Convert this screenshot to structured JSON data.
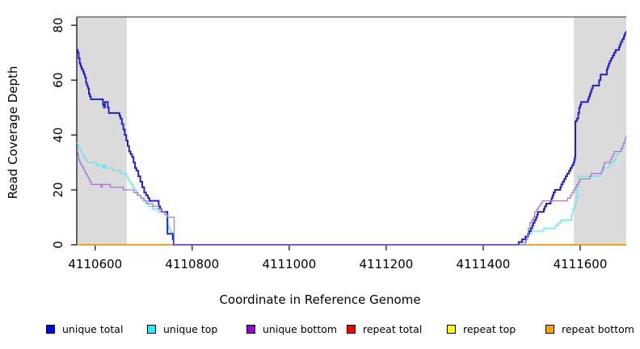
{
  "chart_data": {
    "type": "line",
    "subtype": "step-after-coverage-plot",
    "title": "",
    "xlabel": "Coordinate in Reference Genome",
    "ylabel": "Read Coverage Depth",
    "xlim": [
      4110562,
      4111695
    ],
    "ylim": [
      0,
      83
    ],
    "x_ticks": [
      4110600,
      4110800,
      4111000,
      4111200,
      4111400,
      4111600
    ],
    "y_ticks": [
      0,
      20,
      40,
      60,
      80
    ],
    "grid": "off",
    "background": "#FFFFFF",
    "shaded_regions": [
      {
        "x0": 4110562,
        "x1": 4110665,
        "color": "#DBDBDB"
      },
      {
        "x0": 4111587,
        "x1": 4111695,
        "color": "#DBDBDB"
      }
    ],
    "legend": [
      {
        "label": "unique total",
        "color": "#0000EE"
      },
      {
        "label": "unique top",
        "color": "#00FFFF"
      },
      {
        "label": "unique bottom",
        "color": "#9400D3"
      },
      {
        "label": "repeat total",
        "color": "#FF0000"
      },
      {
        "label": "repeat top",
        "color": "#FFFF00"
      },
      {
        "label": "repeat bottom",
        "color": "#FFA500"
      }
    ],
    "legend_position": "bottom",
    "draw_order": [
      "repeat total",
      "repeat top",
      "repeat bottom",
      "unique top",
      "unique total",
      "unique bottom"
    ],
    "series": [
      {
        "name": "unique total",
        "color": "#2222CC",
        "width": 2,
        "points": [
          [
            4110562,
            71
          ],
          [
            4110564,
            70
          ],
          [
            4110566,
            68
          ],
          [
            4110568,
            66
          ],
          [
            4110570,
            65
          ],
          [
            4110572,
            64
          ],
          [
            4110575,
            63
          ],
          [
            4110577,
            62
          ],
          [
            4110579,
            61
          ],
          [
            4110581,
            59
          ],
          [
            4110583,
            58
          ],
          [
            4110585,
            57
          ],
          [
            4110587,
            55
          ],
          [
            4110589,
            54
          ],
          [
            4110591,
            53
          ],
          [
            4110614,
            53
          ],
          [
            4110616,
            51
          ],
          [
            4110618,
            50
          ],
          [
            4110620,
            52
          ],
          [
            4110624,
            52
          ],
          [
            4110626,
            50
          ],
          [
            4110628,
            48
          ],
          [
            4110648,
            48
          ],
          [
            4110650,
            47
          ],
          [
            4110652,
            46
          ],
          [
            4110655,
            44
          ],
          [
            4110658,
            42
          ],
          [
            4110661,
            40
          ],
          [
            4110664,
            38
          ],
          [
            4110667,
            36
          ],
          [
            4110670,
            34
          ],
          [
            4110673,
            33
          ],
          [
            4110676,
            32
          ],
          [
            4110679,
            30
          ],
          [
            4110682,
            28
          ],
          [
            4110685,
            27
          ],
          [
            4110689,
            25
          ],
          [
            4110693,
            23
          ],
          [
            4110697,
            21
          ],
          [
            4110701,
            19
          ],
          [
            4110705,
            18
          ],
          [
            4110709,
            17
          ],
          [
            4110712,
            16
          ],
          [
            4110728,
            16
          ],
          [
            4110731,
            14
          ],
          [
            4110734,
            13
          ],
          [
            4110737,
            12
          ],
          [
            4110748,
            12
          ],
          [
            4110749,
            4
          ],
          [
            4110758,
            4
          ],
          [
            4110760,
            2
          ],
          [
            4110762,
            0
          ],
          [
            4111473,
            1
          ],
          [
            4111480,
            2
          ],
          [
            4111487,
            3
          ],
          [
            4111492,
            4
          ],
          [
            4111495,
            5
          ],
          [
            4111498,
            6
          ],
          [
            4111501,
            7
          ],
          [
            4111503,
            8
          ],
          [
            4111506,
            9
          ],
          [
            4111509,
            10
          ],
          [
            4111511,
            11
          ],
          [
            4111513,
            12
          ],
          [
            4111522,
            12
          ],
          [
            4111525,
            13
          ],
          [
            4111527,
            14
          ],
          [
            4111530,
            15
          ],
          [
            4111537,
            15
          ],
          [
            4111539,
            16
          ],
          [
            4111541,
            17
          ],
          [
            4111543,
            18
          ],
          [
            4111545,
            19
          ],
          [
            4111548,
            20
          ],
          [
            4111557,
            20
          ],
          [
            4111559,
            21
          ],
          [
            4111561,
            22
          ],
          [
            4111564,
            23
          ],
          [
            4111567,
            24
          ],
          [
            4111570,
            25
          ],
          [
            4111573,
            26
          ],
          [
            4111577,
            27
          ],
          [
            4111580,
            28
          ],
          [
            4111583,
            29
          ],
          [
            4111586,
            30
          ],
          [
            4111588,
            31
          ],
          [
            4111589,
            32
          ],
          [
            4111590,
            45
          ],
          [
            4111593,
            46
          ],
          [
            4111596,
            48
          ],
          [
            4111598,
            50
          ],
          [
            4111600,
            51
          ],
          [
            4111602,
            52
          ],
          [
            4111614,
            52
          ],
          [
            4111616,
            53
          ],
          [
            4111618,
            54
          ],
          [
            4111620,
            55
          ],
          [
            4111622,
            56
          ],
          [
            4111624,
            57
          ],
          [
            4111626,
            58
          ],
          [
            4111636,
            58
          ],
          [
            4111639,
            60
          ],
          [
            4111642,
            62
          ],
          [
            4111653,
            62
          ],
          [
            4111655,
            64
          ],
          [
            4111657,
            65
          ],
          [
            4111659,
            66
          ],
          [
            4111661,
            67
          ],
          [
            4111664,
            68
          ],
          [
            4111667,
            69
          ],
          [
            4111670,
            70
          ],
          [
            4111673,
            71
          ],
          [
            4111680,
            72
          ],
          [
            4111682,
            73
          ],
          [
            4111684,
            74
          ],
          [
            4111687,
            75
          ],
          [
            4111690,
            76
          ],
          [
            4111692,
            77
          ],
          [
            4111695,
            78
          ]
        ]
      },
      {
        "name": "unique top",
        "color": "#5FE8EE",
        "width": 1.3,
        "points": [
          [
            4110562,
            37
          ],
          [
            4110564,
            36
          ],
          [
            4110567,
            35
          ],
          [
            4110570,
            34
          ],
          [
            4110573,
            33
          ],
          [
            4110576,
            32
          ],
          [
            4110579,
            31
          ],
          [
            4110583,
            30
          ],
          [
            4110600,
            30
          ],
          [
            4110602,
            29
          ],
          [
            4110614,
            29
          ],
          [
            4110616,
            28
          ],
          [
            4110618,
            29
          ],
          [
            4110621,
            28
          ],
          [
            4110633,
            28
          ],
          [
            4110636,
            27
          ],
          [
            4110650,
            27
          ],
          [
            4110653,
            26
          ],
          [
            4110661,
            26
          ],
          [
            4110664,
            25
          ],
          [
            4110667,
            24
          ],
          [
            4110670,
            23
          ],
          [
            4110674,
            22
          ],
          [
            4110677,
            21
          ],
          [
            4110681,
            20
          ],
          [
            4110685,
            19
          ],
          [
            4110689,
            18
          ],
          [
            4110694,
            17
          ],
          [
            4110699,
            16
          ],
          [
            4110704,
            15
          ],
          [
            4110711,
            14
          ],
          [
            4110718,
            13
          ],
          [
            4110730,
            12
          ],
          [
            4110745,
            12
          ],
          [
            4110748,
            9
          ],
          [
            4110750,
            7
          ],
          [
            4110752,
            6
          ],
          [
            4110754,
            5
          ],
          [
            4110758,
            4
          ],
          [
            4110762,
            0
          ],
          [
            4111483,
            1
          ],
          [
            4111486,
            2
          ],
          [
            4111490,
            3
          ],
          [
            4111494,
            4
          ],
          [
            4111500,
            5
          ],
          [
            4111522,
            5
          ],
          [
            4111525,
            6
          ],
          [
            4111549,
            7
          ],
          [
            4111554,
            8
          ],
          [
            4111560,
            9
          ],
          [
            4111578,
            9
          ],
          [
            4111582,
            11
          ],
          [
            4111585,
            13
          ],
          [
            4111588,
            14
          ],
          [
            4111590,
            15
          ],
          [
            4111592,
            17
          ],
          [
            4111594,
            22
          ],
          [
            4111596,
            25
          ],
          [
            4111638,
            25
          ],
          [
            4111642,
            26
          ],
          [
            4111646,
            27
          ],
          [
            4111649,
            28
          ],
          [
            4111656,
            28
          ],
          [
            4111660,
            29
          ],
          [
            4111663,
            30
          ],
          [
            4111670,
            31
          ],
          [
            4111674,
            33
          ],
          [
            4111679,
            34
          ],
          [
            4111686,
            35
          ],
          [
            4111689,
            36
          ],
          [
            4111692,
            37
          ]
        ]
      },
      {
        "name": "unique bottom",
        "color": "#A87BDB",
        "width": 1.3,
        "points": [
          [
            4110562,
            34
          ],
          [
            4110564,
            33
          ],
          [
            4110566,
            31
          ],
          [
            4110568,
            30
          ],
          [
            4110571,
            29
          ],
          [
            4110574,
            28
          ],
          [
            4110577,
            27
          ],
          [
            4110580,
            26
          ],
          [
            4110583,
            25
          ],
          [
            4110586,
            24
          ],
          [
            4110589,
            23
          ],
          [
            4110592,
            22
          ],
          [
            4110610,
            22
          ],
          [
            4110612,
            21
          ],
          [
            4110614,
            22
          ],
          [
            4110628,
            22
          ],
          [
            4110631,
            21
          ],
          [
            4110655,
            21
          ],
          [
            4110658,
            20
          ],
          [
            4110676,
            20
          ],
          [
            4110680,
            19
          ],
          [
            4110687,
            18
          ],
          [
            4110694,
            17
          ],
          [
            4110701,
            16
          ],
          [
            4110707,
            15
          ],
          [
            4110716,
            15
          ],
          [
            4110719,
            14
          ],
          [
            4110727,
            14
          ],
          [
            4110731,
            13
          ],
          [
            4110737,
            12
          ],
          [
            4110743,
            11
          ],
          [
            4110749,
            10
          ],
          [
            4110760,
            10
          ],
          [
            4110763,
            0
          ],
          [
            4111487,
            1
          ],
          [
            4111489,
            2
          ],
          [
            4111491,
            4
          ],
          [
            4111493,
            6
          ],
          [
            4111496,
            8
          ],
          [
            4111500,
            9
          ],
          [
            4111503,
            10
          ],
          [
            4111506,
            12
          ],
          [
            4111510,
            13
          ],
          [
            4111514,
            14
          ],
          [
            4111518,
            15
          ],
          [
            4111522,
            16
          ],
          [
            4111570,
            16
          ],
          [
            4111574,
            17
          ],
          [
            4111580,
            18
          ],
          [
            4111583,
            19
          ],
          [
            4111586,
            20
          ],
          [
            4111590,
            21
          ],
          [
            4111593,
            22
          ],
          [
            4111597,
            23
          ],
          [
            4111600,
            24
          ],
          [
            4111617,
            24
          ],
          [
            4111620,
            25
          ],
          [
            4111623,
            26
          ],
          [
            4111640,
            26
          ],
          [
            4111644,
            27
          ],
          [
            4111646,
            28
          ],
          [
            4111648,
            29
          ],
          [
            4111650,
            30
          ],
          [
            4111662,
            31
          ],
          [
            4111665,
            32
          ],
          [
            4111668,
            33
          ],
          [
            4111670,
            34
          ],
          [
            4111682,
            34
          ],
          [
            4111684,
            35
          ],
          [
            4111687,
            36
          ],
          [
            4111689,
            37
          ],
          [
            4111691,
            38
          ],
          [
            4111693,
            39
          ],
          [
            4111695,
            40
          ]
        ]
      },
      {
        "name": "repeat total",
        "color": "#FF0000",
        "width": 1.3,
        "points": [
          [
            4110562,
            0
          ],
          [
            4111695,
            0
          ]
        ]
      },
      {
        "name": "repeat top",
        "color": "#FFFF00",
        "width": 1.3,
        "points": [
          [
            4110562,
            0
          ],
          [
            4111695,
            0
          ]
        ]
      },
      {
        "name": "repeat bottom",
        "color": "#FFA500",
        "width": 1.6,
        "points": [
          [
            4110562,
            0
          ],
          [
            4111695,
            0
          ]
        ]
      }
    ]
  }
}
